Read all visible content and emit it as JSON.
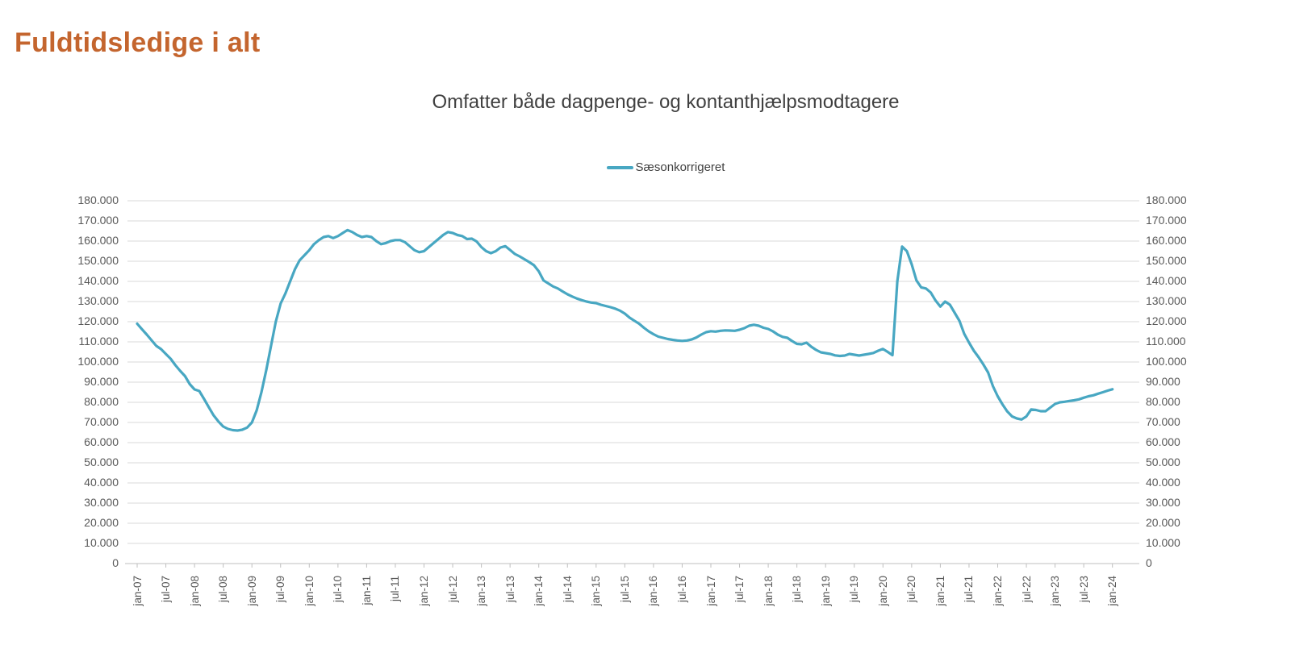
{
  "title": "Fuldtidsledige i alt",
  "colors": {
    "title": "#C4652E",
    "subtitle": "#404040",
    "legend_text": "#404040",
    "axis_text": "#595959",
    "gridline": "#D9D9D9",
    "axis_line": "#BFBFBF",
    "series": "#48A7C2",
    "background": "#FFFFFF"
  },
  "chart_data": {
    "type": "line",
    "title": "Omfatter både dagpenge- og kontanthjælpsmodtagere",
    "legend_position": "top",
    "grid": true,
    "x_start": "jan-07",
    "x_end": "jan-24",
    "x_step_months": 1,
    "x_tick_labels": [
      "jan-07",
      "jul-07",
      "jan-08",
      "jul-08",
      "jan-09",
      "jul-09",
      "jan-10",
      "jul-10",
      "jan-11",
      "jul-11",
      "jan-12",
      "jul-12",
      "jan-13",
      "jul-13",
      "jan-14",
      "jul-14",
      "jan-15",
      "jul-15",
      "jan-16",
      "jul-16",
      "jan-17",
      "jul-17",
      "jan-18",
      "jul-18",
      "jan-19",
      "jul-19",
      "jan-20",
      "jul-20",
      "jan-21",
      "jul-21",
      "jan-22",
      "jul-22",
      "jan-23",
      "jul-23",
      "jan-24"
    ],
    "y_tick_labels": [
      "0",
      "10.000",
      "20.000",
      "30.000",
      "40.000",
      "50.000",
      "60.000",
      "70.000",
      "80.000",
      "90.000",
      "100.000",
      "110.000",
      "120.000",
      "130.000",
      "140.000",
      "150.000",
      "160.000",
      "170.000",
      "180.000"
    ],
    "y_tick_values": [
      0,
      10000,
      20000,
      30000,
      40000,
      50000,
      60000,
      70000,
      80000,
      90000,
      100000,
      110000,
      120000,
      130000,
      140000,
      150000,
      160000,
      170000,
      180000
    ],
    "ylim": [
      0,
      180000
    ],
    "dual_y_axis": true,
    "series": [
      {
        "name": "Sæsonkorrigeret",
        "color": "#48A7C2",
        "values": [
          119000,
          116300,
          113600,
          110800,
          108000,
          106400,
          104000,
          101600,
          98400,
          95600,
          93000,
          89000,
          86400,
          85600,
          81600,
          77500,
          73500,
          70500,
          68000,
          66800,
          66200,
          66000,
          66400,
          67500,
          70000,
          76000,
          85000,
          96000,
          108000,
          120000,
          129000,
          134000,
          140000,
          146000,
          150500,
          153000,
          155500,
          158500,
          160500,
          162000,
          162500,
          161500,
          162500,
          164000,
          165500,
          164500,
          163000,
          162000,
          162500,
          162000,
          160000,
          158500,
          159000,
          160000,
          160500,
          160500,
          159500,
          157500,
          155500,
          154500,
          155000,
          157000,
          159000,
          161000,
          163000,
          164500,
          164000,
          163000,
          162500,
          161000,
          161200,
          159800,
          157000,
          155000,
          154000,
          155000,
          156800,
          157500,
          155600,
          153600,
          152400,
          151000,
          149600,
          148000,
          145000,
          140500,
          139000,
          137500,
          136500,
          135000,
          133600,
          132500,
          131500,
          130700,
          130000,
          129500,
          129200,
          128400,
          127800,
          127200,
          126500,
          125500,
          124000,
          122000,
          120500,
          119000,
          117000,
          115200,
          113800,
          112600,
          112000,
          111400,
          111000,
          110700,
          110500,
          110700,
          111200,
          112200,
          113600,
          114800,
          115300,
          115100,
          115500,
          115700,
          115600,
          115500,
          116000,
          116800,
          118000,
          118500,
          118000,
          117000,
          116400,
          115200,
          113600,
          112500,
          112000,
          110400,
          109000,
          108800,
          109600,
          107600,
          106000,
          104800,
          104400,
          104000,
          103300,
          103000,
          103200,
          104000,
          103600,
          103200,
          103600,
          104000,
          104500,
          105600,
          106500,
          105000,
          103400,
          140000,
          157300,
          155000,
          148500,
          140500,
          137000,
          136500,
          134500,
          130500,
          127500,
          130000,
          128400,
          124400,
          120400,
          114000,
          109600,
          105600,
          102400,
          98800,
          94800,
          88000,
          83000,
          79000,
          75500,
          73000,
          72000,
          71500,
          73000,
          76500,
          76200,
          75600,
          75600,
          77400,
          79200,
          80000,
          80300,
          80700,
          81000,
          81500,
          82300,
          83000,
          83500,
          84300,
          85000,
          85800,
          86500
        ]
      }
    ]
  }
}
